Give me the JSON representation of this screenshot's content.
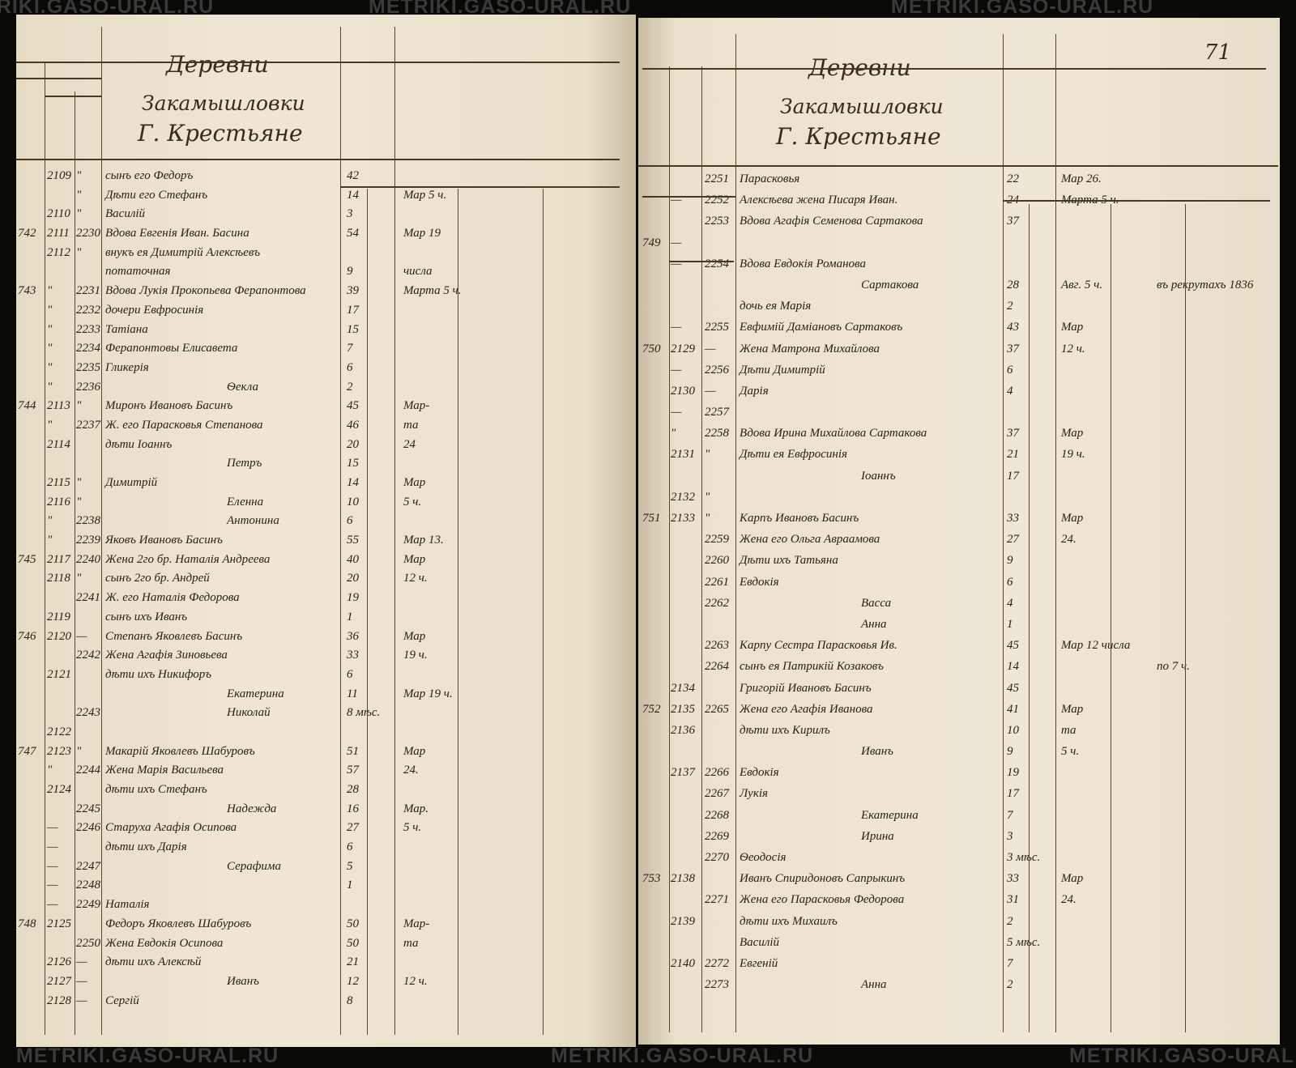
{
  "watermark": "METRIKI.GASO-URAL.RU",
  "page_number": "71",
  "left_page": {
    "heading": [
      "Деревни",
      "Закамышловки",
      "Г. Крестьяне"
    ],
    "rows": [
      [
        "",
        "2109",
        "\"",
        "сынъ его Федоръ",
        "42",
        ""
      ],
      [
        "",
        "",
        "\"",
        "Дѣти его Стефанъ",
        "14",
        "Мар 5 ч."
      ],
      [
        "",
        "2110",
        "\"",
        "Василій",
        "3",
        ""
      ],
      [
        "742",
        "2111",
        "2230",
        "Вдова Евгенія Иван. Басина",
        "54",
        "Мар 19"
      ],
      [
        "",
        "2112",
        "\"",
        "внукъ ея Димитрій Алексѣевъ",
        "",
        ""
      ],
      [
        "",
        "",
        "",
        "потаточная",
        "9",
        "числа"
      ],
      [
        "743",
        "\"",
        "2231",
        "Вдова Лукія Прокопьева Ферапонтова",
        "39",
        "Марта 5 ч."
      ],
      [
        "",
        "\"",
        "2232",
        "дочери Евфросинія",
        "17",
        ""
      ],
      [
        "",
        "\"",
        "2233",
        "Татіана",
        "15",
        ""
      ],
      [
        "",
        "\"",
        "2234",
        "Ферапонтовы  Елисавета",
        "7",
        ""
      ],
      [
        "",
        "\"",
        "2235",
        "Гликерія",
        "6",
        ""
      ],
      [
        "",
        "\"",
        "2236",
        "Ѳекла",
        "2",
        ""
      ],
      [
        "744",
        "2113",
        "\"",
        "Миронъ Ивановъ Басинъ",
        "45",
        "Мар-"
      ],
      [
        "",
        "\"",
        "2237",
        "Ж. его Парасковья Степанова",
        "46",
        "та"
      ],
      [
        "",
        "2114",
        "",
        "дѣти Іоаннъ",
        "20",
        "24"
      ],
      [
        "",
        "",
        "",
        "Петръ",
        "15",
        ""
      ],
      [
        "",
        "2115",
        "\"",
        "Димитрій",
        "14",
        "Мар"
      ],
      [
        "",
        "2116",
        "\"",
        "Еленна",
        "10",
        "5 ч."
      ],
      [
        "",
        "\"",
        "2238",
        "Антонина",
        "6",
        ""
      ],
      [
        "",
        "\"",
        "2239",
        "Яковъ Ивановъ Басинъ",
        "55",
        "Мар 13."
      ],
      [
        "745",
        "2117",
        "2240",
        "Жена 2го бр. Наталія Андреева",
        "40",
        "Мар"
      ],
      [
        "",
        "2118",
        "\"",
        "сынъ 2го бр. Андрей",
        "20",
        "12 ч."
      ],
      [
        "",
        "",
        "2241",
        "Ж. его Наталія Федорова",
        "19",
        ""
      ],
      [
        "",
        "2119",
        "",
        "сынъ ихъ Иванъ",
        "1",
        ""
      ],
      [
        "746",
        "2120",
        "—",
        "Степанъ Яковлевъ Басинъ",
        "36",
        "Мар"
      ],
      [
        "",
        "",
        "2242",
        "Жена Агафія Зиновьева",
        "33",
        "19 ч."
      ],
      [
        "",
        "2121",
        "",
        "дѣти ихъ Никифоръ",
        "6",
        ""
      ],
      [
        "",
        "",
        "",
        "Екатерина",
        "11",
        "Мар 19 ч."
      ],
      [
        "",
        "",
        "2243",
        "Николай",
        "8 мѣс.",
        ""
      ],
      [
        "",
        "2122",
        "",
        "",
        "",
        ""
      ],
      [
        "747",
        "2123",
        "\"",
        "Макарій Яковлевъ Шабуровъ",
        "51",
        "Мар"
      ],
      [
        "",
        "\"",
        "2244",
        "Жена Марія Васильева",
        "57",
        "24."
      ],
      [
        "",
        "2124",
        "",
        "дѣти ихъ Стефанъ",
        "28",
        ""
      ],
      [
        "",
        "",
        "2245",
        "Надежда",
        "16",
        "Мар."
      ],
      [
        "",
        "—",
        "2246",
        "Старуха Агафія Осипова",
        "27",
        "5 ч."
      ],
      [
        "",
        "—",
        "",
        "дѣти ихъ Дарія",
        "6",
        ""
      ],
      [
        "",
        "—",
        "2247",
        "Серафима",
        "5",
        ""
      ],
      [
        "",
        "—",
        "2248",
        "",
        "1",
        ""
      ],
      [
        "",
        "—",
        "2249",
        "Наталія",
        "",
        ""
      ],
      [
        "748",
        "2125",
        "",
        "Федоръ Яковлевъ Шабуровъ",
        "50",
        "Мар-"
      ],
      [
        "",
        "",
        "2250",
        "Жена Евдокія Осипова",
        "50",
        "та"
      ],
      [
        "",
        "2126",
        "—",
        "дѣти ихъ Алексѣй",
        "21",
        ""
      ],
      [
        "",
        "2127",
        "—",
        "Иванъ",
        "12",
        "12 ч."
      ],
      [
        "",
        "2128",
        "—",
        "Сергій",
        "8",
        ""
      ]
    ]
  },
  "right_page": {
    "heading": [
      "Деревни",
      "Закамышловки",
      "Г. Крестьяне"
    ],
    "rows": [
      [
        "",
        "",
        "2251",
        "Парасковья",
        "22",
        "Мар 26.",
        ""
      ],
      [
        "",
        "—",
        "2252",
        "Алексѣева жена Писаря Иван.",
        "24",
        "Марта 5 ч.",
        ""
      ],
      [
        "",
        "",
        "2253",
        "Вдова Агафія Семенова Сартакова",
        "37",
        "",
        ""
      ],
      [
        "749",
        "—",
        "",
        "",
        "",
        "",
        ""
      ],
      [
        "",
        "—",
        "2254",
        "Вдова Евдокія Романова",
        "",
        "",
        ""
      ],
      [
        "",
        "",
        "",
        "Сартакова",
        "28",
        "Авг. 5 ч.",
        "въ рекрутахъ 1836"
      ],
      [
        "",
        "",
        "",
        "дочь ея  Марія",
        "2",
        "",
        ""
      ],
      [
        "",
        "—",
        "2255",
        "Евфимій Даміановъ Сартаковъ",
        "43",
        "Мар",
        ""
      ],
      [
        "750",
        "2129",
        "—",
        "Жена Матрона Михайлова",
        "37",
        "12 ч.",
        ""
      ],
      [
        "",
        "—",
        "2256",
        "Дѣти Димитрій",
        "6",
        "",
        ""
      ],
      [
        "",
        "2130",
        "—",
        "Дарія",
        "4",
        "",
        ""
      ],
      [
        "",
        "—",
        "2257",
        "",
        "",
        "",
        ""
      ],
      [
        "",
        "\"",
        "2258",
        "Вдова Ирина Михайлова Сартакова",
        "37",
        "Мар",
        ""
      ],
      [
        "",
        "2131",
        "\"",
        "Дѣти ея Евфросинія",
        "21",
        "19 ч.",
        ""
      ],
      [
        "",
        "",
        "",
        "Іоаннъ",
        "17",
        "",
        ""
      ],
      [
        "",
        "2132",
        "\"",
        "",
        "",
        "",
        ""
      ],
      [
        "751",
        "2133",
        "\"",
        "Карпъ Ивановъ Басинъ",
        "33",
        "Мар",
        ""
      ],
      [
        "",
        "",
        "2259",
        "Жена его Ольга Авраамова",
        "27",
        "24.",
        ""
      ],
      [
        "",
        "",
        "2260",
        "Дѣти ихъ Татьяна",
        "9",
        "",
        ""
      ],
      [
        "",
        "",
        "2261",
        "Евдокія",
        "6",
        "",
        ""
      ],
      [
        "",
        "",
        "2262",
        "Васса",
        "4",
        "",
        ""
      ],
      [
        "",
        "",
        "",
        "Анна",
        "1",
        "",
        ""
      ],
      [
        "",
        "",
        "2263",
        "Карпу Сестра Парасковья Ив.",
        "45",
        "Мар 12 числа",
        ""
      ],
      [
        "",
        "",
        "2264",
        "сынъ ея Патрикій Козаковъ",
        "14",
        "",
        "по 7 ч."
      ],
      [
        "",
        "2134",
        "",
        "Григорій Ивановъ Басинъ",
        "45",
        "",
        ""
      ],
      [
        "752",
        "2135",
        "2265",
        "Жена его Агафія Иванова",
        "41",
        "Мар",
        ""
      ],
      [
        "",
        "2136",
        "",
        "дѣти ихъ Кирилъ",
        "10",
        "та",
        ""
      ],
      [
        "",
        "",
        "",
        "Иванъ",
        "9",
        "5 ч.",
        ""
      ],
      [
        "",
        "2137",
        "2266",
        "Евдокія",
        "19",
        "",
        ""
      ],
      [
        "",
        "",
        "2267",
        "Лукія",
        "17",
        "",
        ""
      ],
      [
        "",
        "",
        "2268",
        "Екатерина",
        "7",
        "",
        ""
      ],
      [
        "",
        "",
        "2269",
        "Ирина",
        "3",
        "",
        ""
      ],
      [
        "",
        "",
        "2270",
        "Ѳеодосія",
        "3 мѣс.",
        "",
        ""
      ],
      [
        "753",
        "2138",
        "",
        "Иванъ Спиридоновъ Сапрыкинъ",
        "33",
        "Мар",
        ""
      ],
      [
        "",
        "",
        "2271",
        "Жена его Парасковья Федорова",
        "31",
        "24.",
        ""
      ],
      [
        "",
        "2139",
        "",
        "дѣти ихъ Михаилъ",
        "2",
        "",
        ""
      ],
      [
        "",
        "",
        "",
        "Василій",
        "5 мѣс.",
        "",
        ""
      ],
      [
        "",
        "2140",
        "2272",
        "Евгеній",
        "7",
        "",
        ""
      ],
      [
        "",
        "",
        "2273",
        "Анна",
        "2",
        "",
        ""
      ]
    ]
  }
}
